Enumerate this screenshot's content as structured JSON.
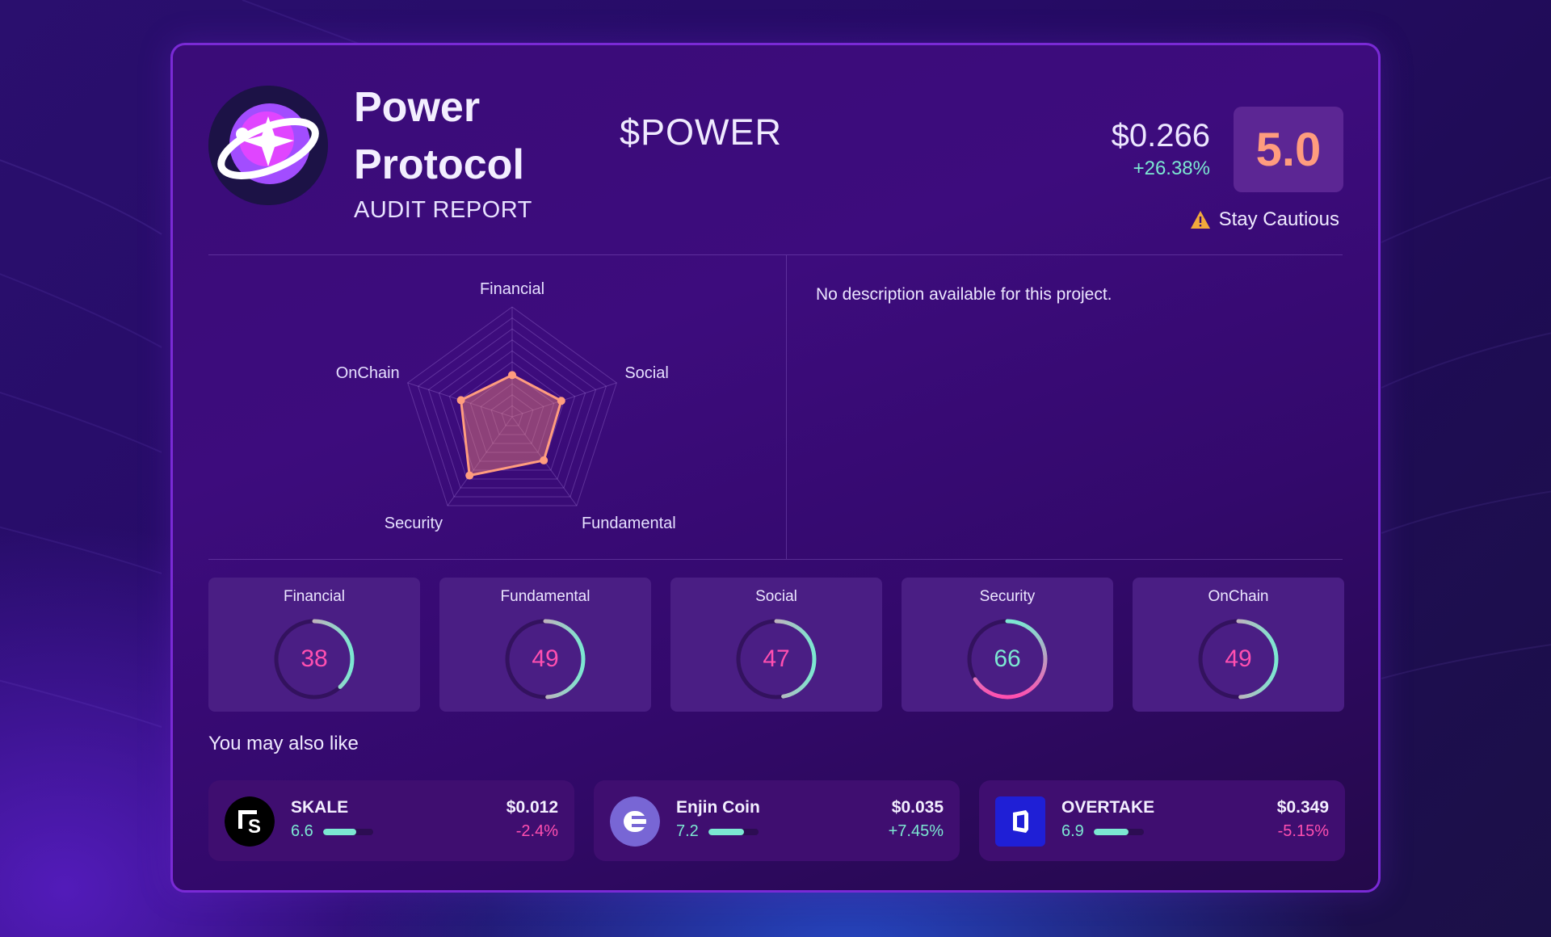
{
  "project": {
    "name_line1": "Power",
    "name_line2": "Protocol",
    "subtitle": "AUDIT REPORT",
    "ticker": "$POWER",
    "price": "$0.266",
    "change": "+26.38%",
    "score": "5.0",
    "verdict": "Stay Cautious",
    "description": "No description available for this project.",
    "logo_icon": "power-protocol-logo"
  },
  "radar": {
    "axes": [
      "Financial",
      "Social",
      "Fundamental",
      "Security",
      "OnChain"
    ],
    "values": [
      38,
      47,
      49,
      66,
      49
    ],
    "max": 100
  },
  "metrics": [
    {
      "label": "Financial",
      "value": 38
    },
    {
      "label": "Fundamental",
      "value": 49
    },
    {
      "label": "Social",
      "value": 47
    },
    {
      "label": "Security",
      "value": 66
    },
    {
      "label": "OnChain",
      "value": 49
    }
  ],
  "also_like_heading": "You may also like",
  "recommendations": [
    {
      "name": "SKALE",
      "score": "6.6",
      "score_value": 6.6,
      "price": "$0.012",
      "change": "-2.4%",
      "trend": "down",
      "icon": "skale-logo"
    },
    {
      "name": "Enjin Coin",
      "score": "7.2",
      "score_value": 7.2,
      "price": "$0.035",
      "change": "+7.45%",
      "trend": "up",
      "icon": "enjin-logo"
    },
    {
      "name": "OVERTAKE",
      "score": "6.9",
      "score_value": 6.9,
      "price": "$0.349",
      "change": "-5.15%",
      "trend": "down",
      "icon": "overtake-logo"
    }
  ],
  "colors": {
    "accent_teal": "#7ce8d2",
    "accent_pink": "#ff4fb0",
    "score_orange": "#ff9c7e",
    "warning": "#f2a93b"
  }
}
